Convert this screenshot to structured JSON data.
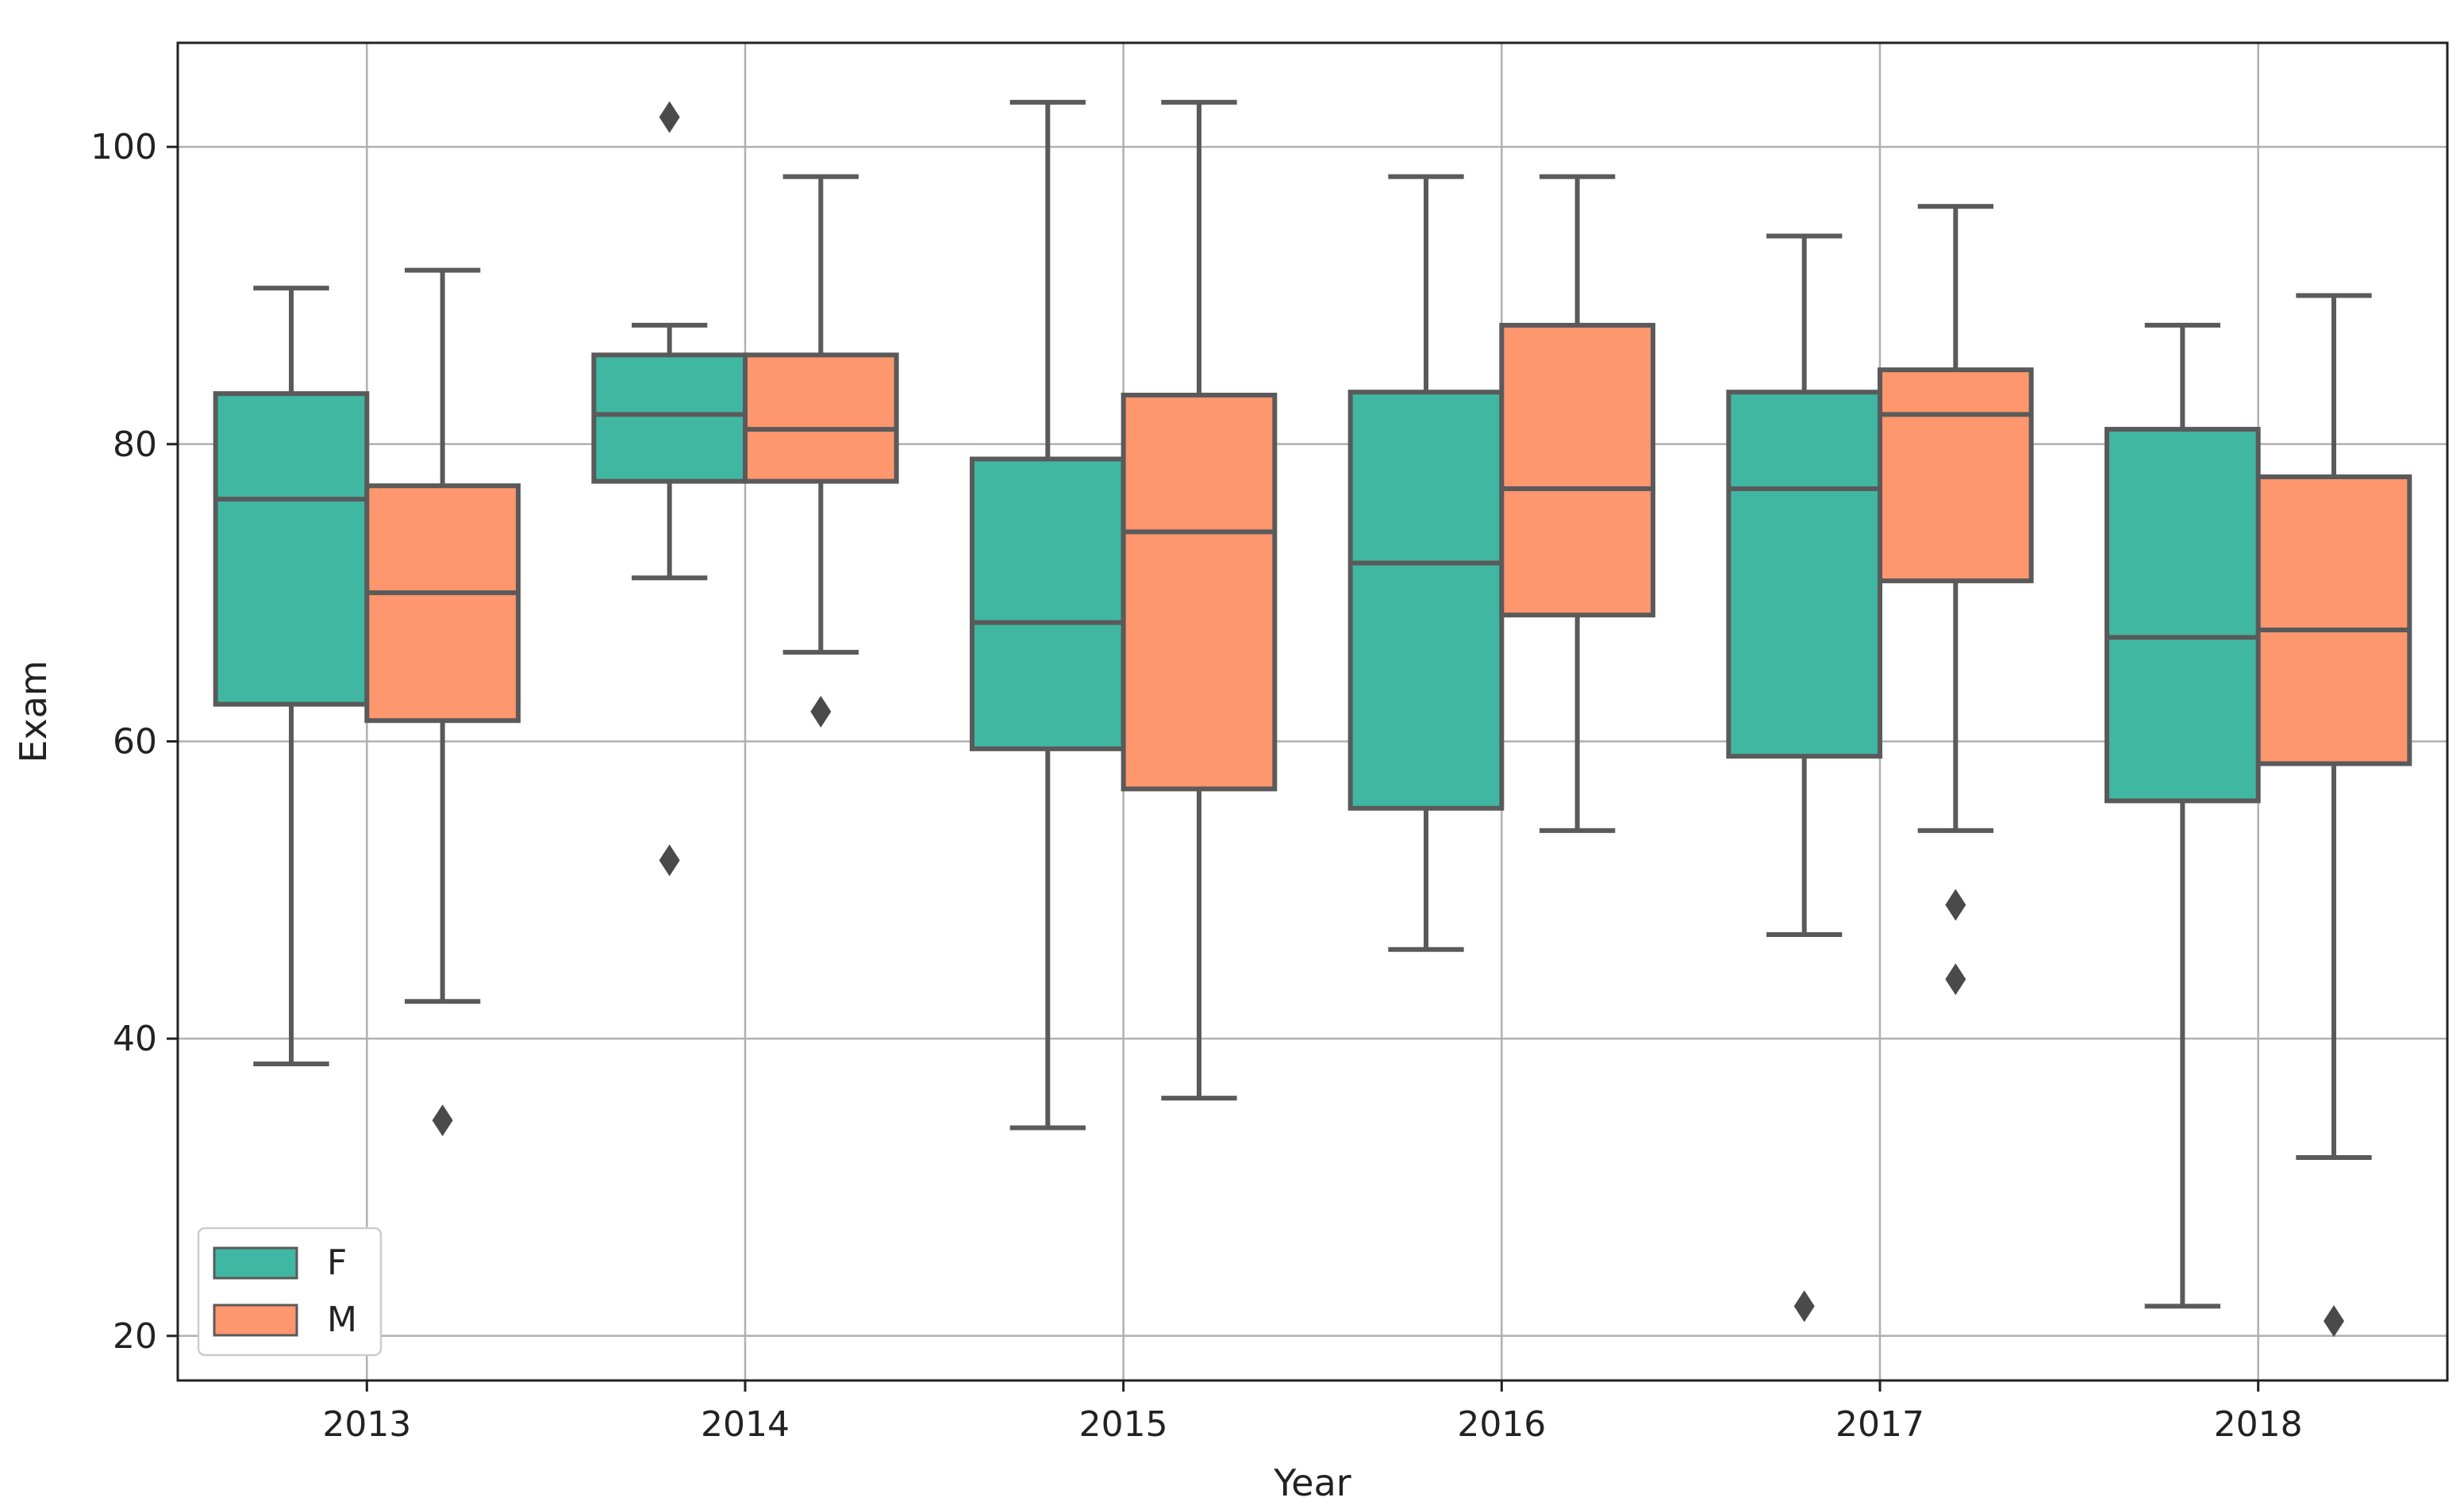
{
  "chart_data": {
    "type": "boxplot",
    "title": "",
    "xlabel": "Year",
    "ylabel": "Exam",
    "ylim": [
      17,
      107
    ],
    "yticks": [
      20,
      40,
      60,
      80,
      100
    ],
    "categories": [
      "2013",
      "2014",
      "2015",
      "2016",
      "2017",
      "2018"
    ],
    "grid": true,
    "legend_position": "lower-left",
    "series": [
      {
        "name": "F",
        "color": "#40b7a3",
        "boxes": [
          {
            "whislo": 38.3,
            "q1": 62.5,
            "med": 76.3,
            "q3": 83.4,
            "whishi": 90.5,
            "fliers": []
          },
          {
            "whislo": 71,
            "q1": 77.5,
            "med": 82,
            "q3": 86,
            "whishi": 88,
            "fliers": [
              102,
              52
            ]
          },
          {
            "whislo": 34,
            "q1": 59.5,
            "med": 68,
            "q3": 79,
            "whishi": 103,
            "fliers": []
          },
          {
            "whislo": 46,
            "q1": 55.5,
            "med": 72,
            "q3": 83.5,
            "whishi": 98,
            "fliers": []
          },
          {
            "whislo": 47,
            "q1": 59,
            "med": 77,
            "q3": 83.5,
            "whishi": 94,
            "fliers": [
              22
            ]
          },
          {
            "whislo": 22,
            "q1": 56,
            "med": 67,
            "q3": 81,
            "whishi": 88,
            "fliers": []
          }
        ]
      },
      {
        "name": "M",
        "color": "#fe966e",
        "boxes": [
          {
            "whislo": 42.5,
            "q1": 61.4,
            "med": 70,
            "q3": 77.2,
            "whishi": 91.7,
            "fliers": [
              34.5
            ]
          },
          {
            "whislo": 66,
            "q1": 77.5,
            "med": 81,
            "q3": 86,
            "whishi": 98,
            "fliers": [
              62
            ]
          },
          {
            "whislo": 36,
            "q1": 56.8,
            "med": 74.1,
            "q3": 83.3,
            "whishi": 103,
            "fliers": []
          },
          {
            "whislo": 54,
            "q1": 68.5,
            "med": 77,
            "q3": 88,
            "whishi": 98,
            "fliers": []
          },
          {
            "whislo": 54,
            "q1": 70.8,
            "med": 82,
            "q3": 85,
            "whishi": 96,
            "fliers": [
              49,
              44
            ]
          },
          {
            "whislo": 32,
            "q1": 58.5,
            "med": 67.5,
            "q3": 77.8,
            "whishi": 90,
            "fliers": [
              21
            ]
          }
        ]
      }
    ]
  }
}
